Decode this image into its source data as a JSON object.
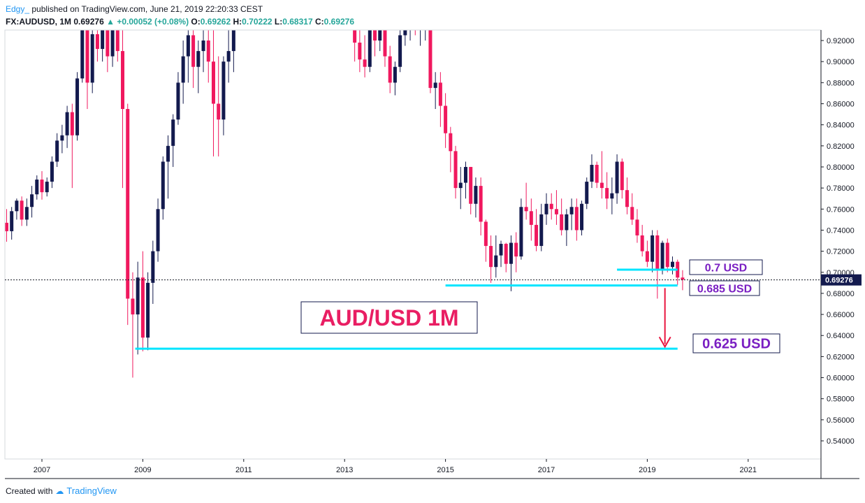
{
  "header": {
    "author": "Edgy_",
    "published_text": "published on TradingView.com, June 21, 2019 22:20:33 CEST",
    "symbol": "FX:AUDUSD, 1M",
    "last": "0.69276",
    "change": "+0.00052 (+0.08%)",
    "O": "0.69262",
    "H": "0.70222",
    "L": "0.68317",
    "C": "0.69276"
  },
  "footer": {
    "created_with": "Created with",
    "brand": "TradingView"
  },
  "colors": {
    "up": "#131a4e",
    "down": "#f0185e",
    "doji": "#f7931e",
    "level": "#00e5ff",
    "label": "#7a1fc2",
    "title": "#e91e63",
    "arrow": "#e8153f"
  },
  "chart_data": {
    "type": "candlestick",
    "title": "AUD/USD 1M",
    "x_ticks": [
      "2007",
      "2009",
      "2011",
      "2013",
      "2015",
      "2017",
      "2019",
      "2021"
    ],
    "y_ticks": [
      "0.92000",
      "0.90000",
      "0.88000",
      "0.86000",
      "0.84000",
      "0.82000",
      "0.80000",
      "0.78000",
      "0.76000",
      "0.74000",
      "0.72000",
      "0.70000",
      "0.68000",
      "0.66000",
      "0.64000",
      "0.62000",
      "0.60000",
      "0.58000",
      "0.56000",
      "0.54000"
    ],
    "ylim": [
      0.527,
      0.93
    ],
    "last_price": "0.69276",
    "annotations": [
      "0.7 USD",
      "0.685 USD",
      "0.625 USD"
    ],
    "levels": [
      {
        "label": "0.7 USD",
        "value": 0.7025,
        "from": 2018.4,
        "to": 2019.6
      },
      {
        "label": "0.685 USD",
        "value": 0.6875,
        "from": 2015.0,
        "to": 2019.6
      },
      {
        "label": "0.625 USD",
        "value": 0.6275,
        "from": 2008.85,
        "to": 2019.6
      }
    ],
    "arrow": {
      "x": 2019.35,
      "from": 0.685,
      "to": 0.628
    },
    "candles": [
      [
        2006.0,
        0.754,
        0.783,
        0.745,
        0.775
      ],
      [
        2006.1,
        0.775,
        0.782,
        0.753,
        0.758
      ],
      [
        2006.2,
        0.758,
        0.77,
        0.742,
        0.747
      ],
      [
        2006.3,
        0.747,
        0.76,
        0.729,
        0.739
      ],
      [
        2006.4,
        0.739,
        0.762,
        0.731,
        0.758
      ],
      [
        2006.5,
        0.758,
        0.77,
        0.75,
        0.768
      ],
      [
        2006.6,
        0.768,
        0.772,
        0.744,
        0.75
      ],
      [
        2006.7,
        0.75,
        0.77,
        0.744,
        0.762
      ],
      [
        2006.8,
        0.762,
        0.782,
        0.752,
        0.774
      ],
      [
        2006.9,
        0.774,
        0.792,
        0.769,
        0.788
      ],
      [
        2007.0,
        0.788,
        0.796,
        0.769,
        0.776
      ],
      [
        2007.1,
        0.776,
        0.79,
        0.772,
        0.786
      ],
      [
        2007.2,
        0.786,
        0.81,
        0.78,
        0.805
      ],
      [
        2007.3,
        0.805,
        0.832,
        0.8,
        0.825
      ],
      [
        2007.4,
        0.825,
        0.84,
        0.813,
        0.83
      ],
      [
        2007.5,
        0.83,
        0.858,
        0.818,
        0.852
      ],
      [
        2007.6,
        0.852,
        0.86,
        0.78,
        0.83
      ],
      [
        2007.7,
        0.83,
        0.89,
        0.825,
        0.884
      ],
      [
        2007.8,
        0.884,
        0.935,
        0.88,
        0.93
      ],
      [
        2007.9,
        0.93,
        0.935,
        0.855,
        0.88
      ],
      [
        2008.0,
        0.88,
        0.935,
        0.87,
        0.926
      ],
      [
        2008.1,
        0.926,
        0.935,
        0.9,
        0.912
      ],
      [
        2008.2,
        0.912,
        0.94,
        0.9,
        0.93
      ],
      [
        2008.3,
        0.93,
        0.94,
        0.89,
        0.905
      ],
      [
        2008.4,
        0.905,
        0.95,
        0.895,
        0.945
      ],
      [
        2008.5,
        0.945,
        0.95,
        0.9,
        0.91
      ],
      [
        2008.6,
        0.91,
        0.94,
        0.78,
        0.855
      ],
      [
        2008.7,
        0.855,
        0.86,
        0.65,
        0.675
      ],
      [
        2008.8,
        0.675,
        0.7,
        0.6,
        0.66
      ],
      [
        2008.9,
        0.66,
        0.71,
        0.622,
        0.695
      ],
      [
        2009.0,
        0.695,
        0.72,
        0.625,
        0.638
      ],
      [
        2009.1,
        0.638,
        0.7,
        0.626,
        0.69
      ],
      [
        2009.2,
        0.69,
        0.73,
        0.67,
        0.72
      ],
      [
        2009.3,
        0.72,
        0.77,
        0.71,
        0.76
      ],
      [
        2009.4,
        0.76,
        0.81,
        0.75,
        0.805
      ],
      [
        2009.5,
        0.805,
        0.83,
        0.77,
        0.82
      ],
      [
        2009.6,
        0.82,
        0.85,
        0.8,
        0.845
      ],
      [
        2009.7,
        0.845,
        0.89,
        0.84,
        0.88
      ],
      [
        2009.8,
        0.88,
        0.92,
        0.86,
        0.905
      ],
      [
        2009.9,
        0.905,
        0.94,
        0.88,
        0.925
      ],
      [
        2010.0,
        0.925,
        0.935,
        0.875,
        0.895
      ],
      [
        2010.1,
        0.895,
        0.92,
        0.87,
        0.91
      ],
      [
        2010.2,
        0.91,
        0.935,
        0.89,
        0.92
      ],
      [
        2010.3,
        0.92,
        0.94,
        0.88,
        0.9
      ],
      [
        2010.4,
        0.9,
        0.935,
        0.81,
        0.86
      ],
      [
        2010.5,
        0.86,
        0.905,
        0.81,
        0.845
      ],
      [
        2010.6,
        0.845,
        0.905,
        0.83,
        0.9
      ],
      [
        2010.7,
        0.9,
        0.935,
        0.88,
        0.91
      ],
      [
        2010.8,
        0.91,
        0.95,
        0.89,
        0.94
      ],
      [
        2013.2,
        1.0,
        1.02,
        0.9,
        0.918
      ],
      [
        2013.3,
        0.918,
        0.93,
        0.89,
        0.902
      ],
      [
        2013.4,
        0.902,
        0.925,
        0.885,
        0.895
      ],
      [
        2013.5,
        0.895,
        0.94,
        0.89,
        0.93
      ],
      [
        2013.6,
        0.93,
        0.95,
        0.905,
        0.92
      ],
      [
        2013.7,
        0.92,
        0.945,
        0.91,
        0.94
      ],
      [
        2013.8,
        0.94,
        0.955,
        0.895,
        0.905
      ],
      [
        2013.9,
        0.905,
        0.915,
        0.87,
        0.88
      ],
      [
        2014.0,
        0.88,
        0.9,
        0.868,
        0.895
      ],
      [
        2014.1,
        0.895,
        0.93,
        0.89,
        0.925
      ],
      [
        2014.2,
        0.925,
        0.94,
        0.915,
        0.93
      ],
      [
        2014.3,
        0.93,
        0.945,
        0.92,
        0.935
      ],
      [
        2014.4,
        0.935,
        0.945,
        0.925,
        0.93
      ],
      [
        2014.5,
        0.93,
        0.945,
        0.915,
        0.935
      ],
      [
        2014.6,
        0.935,
        0.95,
        0.92,
        0.94
      ],
      [
        2014.7,
        0.94,
        0.95,
        0.87,
        0.875
      ],
      [
        2014.8,
        0.875,
        0.89,
        0.855,
        0.88
      ],
      [
        2014.9,
        0.88,
        0.89,
        0.838,
        0.858
      ],
      [
        2015.0,
        0.858,
        0.87,
        0.818,
        0.832
      ],
      [
        2015.1,
        0.832,
        0.838,
        0.795,
        0.815
      ],
      [
        2015.2,
        0.815,
        0.82,
        0.77,
        0.78
      ],
      [
        2015.3,
        0.78,
        0.8,
        0.76,
        0.785
      ],
      [
        2015.4,
        0.785,
        0.805,
        0.77,
        0.8
      ],
      [
        2015.5,
        0.8,
        0.8,
        0.755,
        0.765
      ],
      [
        2015.6,
        0.765,
        0.79,
        0.752,
        0.782
      ],
      [
        2015.7,
        0.782,
        0.79,
        0.735,
        0.748
      ],
      [
        2015.8,
        0.748,
        0.75,
        0.71,
        0.725
      ],
      [
        2015.9,
        0.725,
        0.735,
        0.69,
        0.705
      ],
      [
        2016.0,
        0.705,
        0.735,
        0.695,
        0.716
      ],
      [
        2016.1,
        0.716,
        0.73,
        0.705,
        0.727
      ],
      [
        2016.2,
        0.727,
        0.728,
        0.7,
        0.708
      ],
      [
        2016.3,
        0.708,
        0.735,
        0.682,
        0.728
      ],
      [
        2016.4,
        0.728,
        0.738,
        0.7,
        0.715
      ],
      [
        2016.5,
        0.715,
        0.77,
        0.712,
        0.762
      ],
      [
        2016.6,
        0.762,
        0.785,
        0.75,
        0.758
      ],
      [
        2016.7,
        0.758,
        0.77,
        0.73,
        0.745
      ],
      [
        2016.8,
        0.745,
        0.76,
        0.72,
        0.725
      ],
      [
        2016.9,
        0.725,
        0.765,
        0.72,
        0.755
      ],
      [
        2017.0,
        0.755,
        0.775,
        0.745,
        0.765
      ],
      [
        2017.1,
        0.765,
        0.775,
        0.75,
        0.76
      ],
      [
        2017.2,
        0.76,
        0.778,
        0.745,
        0.755
      ],
      [
        2017.3,
        0.755,
        0.77,
        0.735,
        0.74
      ],
      [
        2017.4,
        0.74,
        0.76,
        0.725,
        0.755
      ],
      [
        2017.5,
        0.755,
        0.77,
        0.74,
        0.762
      ],
      [
        2017.6,
        0.762,
        0.77,
        0.73,
        0.74
      ],
      [
        2017.7,
        0.74,
        0.768,
        0.735,
        0.765
      ],
      [
        2017.8,
        0.765,
        0.79,
        0.76,
        0.786
      ],
      [
        2017.9,
        0.786,
        0.812,
        0.78,
        0.802
      ],
      [
        2018.0,
        0.802,
        0.805,
        0.78,
        0.785
      ],
      [
        2018.1,
        0.785,
        0.815,
        0.77,
        0.78
      ],
      [
        2018.2,
        0.78,
        0.795,
        0.76,
        0.77
      ],
      [
        2018.3,
        0.77,
        0.79,
        0.755,
        0.775
      ],
      [
        2018.4,
        0.775,
        0.812,
        0.765,
        0.805
      ],
      [
        2018.5,
        0.805,
        0.808,
        0.77,
        0.778
      ],
      [
        2018.6,
        0.778,
        0.79,
        0.755,
        0.762
      ],
      [
        2018.7,
        0.762,
        0.775,
        0.745,
        0.75
      ],
      [
        2018.8,
        0.75,
        0.76,
        0.728,
        0.735
      ],
      [
        2018.9,
        0.735,
        0.745,
        0.715,
        0.72
      ],
      [
        2019.0,
        0.72,
        0.73,
        0.705,
        0.71
      ],
      [
        2019.1,
        0.71,
        0.74,
        0.7,
        0.735
      ],
      [
        2019.2,
        0.735,
        0.74,
        0.675,
        0.703
      ],
      [
        2019.3,
        0.703,
        0.73,
        0.698,
        0.728
      ],
      [
        2019.4,
        0.728,
        0.732,
        0.7,
        0.705
      ],
      [
        2019.5,
        0.705,
        0.715,
        0.698,
        0.71
      ],
      [
        2019.6,
        0.71,
        0.712,
        0.688,
        0.695
      ],
      [
        2019.7,
        0.695,
        0.702,
        0.683,
        0.693
      ]
    ]
  }
}
